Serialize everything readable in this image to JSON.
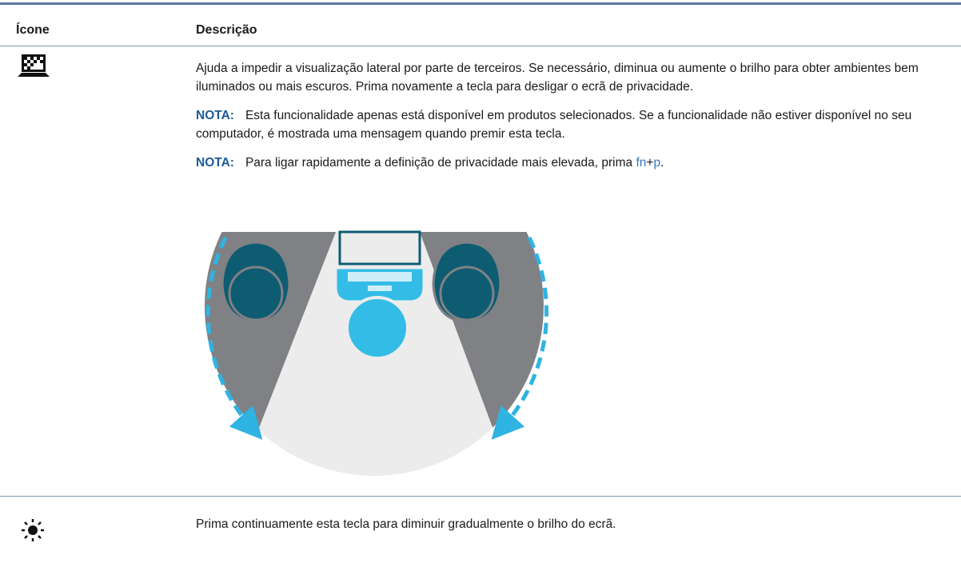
{
  "table": {
    "headers": [
      "Ícone",
      "Descrição"
    ],
    "rows": [
      {
        "paragraphs": [
          "Ajuda a impedir a visualização lateral por parte de terceiros. Se necessário, diminua ou aumente o brilho para obter ambientes bem iluminados ou mais escuros. Prima novamente a tecla para desligar o ecrã de privacidade."
        ],
        "notes": [
          {
            "label": "NOTA:",
            "text": "Esta funcionalidade apenas está disponível em produtos selecionados. Se a funcionalidade não estiver disponível no seu computador, é mostrada uma mensagem quando premir esta tecla."
          },
          {
            "label": "NOTA:",
            "text": "Para ligar rapidamente a definição de privacidade mais elevada, prima ",
            "keys": [
              "fn",
              "p"
            ],
            "joiner": "+",
            "end": "."
          }
        ]
      },
      {
        "paragraphs": [
          "Prima continuamente esta tecla para diminuir gradualmente o brilho do ecrã."
        ]
      }
    ]
  }
}
